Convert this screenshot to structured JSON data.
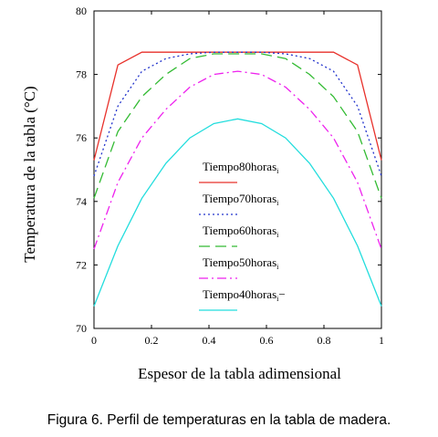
{
  "chart_data": {
    "type": "line",
    "xlabel": "Espesor de la tabla adimensional",
    "ylabel": "Temperatura de la tabla (°C)",
    "xlim": [
      0,
      1
    ],
    "ylim": [
      70,
      80
    ],
    "xticks": [
      "0",
      "0.2",
      "0.4",
      "0.6",
      "0.8",
      "1"
    ],
    "yticks": [
      "70",
      "72",
      "74",
      "76",
      "78",
      "80"
    ],
    "grid": false,
    "legend_position": "center",
    "x": [
      0,
      0.0833,
      0.1667,
      0.25,
      0.3333,
      0.4167,
      0.5,
      0.5833,
      0.6667,
      0.75,
      0.8333,
      0.9167,
      1
    ],
    "series": [
      {
        "name": "Tiempo80horas",
        "subscript": "i",
        "color": "#e8312b",
        "dash": "",
        "values": [
          75.3,
          78.3,
          78.7,
          78.7,
          78.7,
          78.7,
          78.7,
          78.7,
          78.7,
          78.7,
          78.7,
          78.3,
          75.3
        ]
      },
      {
        "name": "Tiempo70horas",
        "subscript": "i",
        "color": "#2233cc",
        "dash": "2,3",
        "values": [
          74.8,
          77.0,
          78.1,
          78.5,
          78.65,
          78.7,
          78.7,
          78.7,
          78.65,
          78.5,
          78.1,
          77.0,
          74.8
        ]
      },
      {
        "name": "Tiempo60horas",
        "subscript": "i",
        "color": "#33bb33",
        "dash": "12,6",
        "values": [
          74.1,
          76.2,
          77.3,
          78.0,
          78.5,
          78.65,
          78.65,
          78.65,
          78.5,
          78.0,
          77.3,
          76.2,
          74.1
        ]
      },
      {
        "name": "Tiempo50horas",
        "subscript": "i",
        "color": "#ee22ee",
        "dash": "10,4,2,4",
        "values": [
          72.5,
          74.6,
          76.0,
          76.9,
          77.6,
          78.0,
          78.1,
          78.0,
          77.6,
          76.9,
          76.0,
          74.6,
          72.5
        ]
      },
      {
        "name": "Tiempo40horas",
        "subscript": "i",
        "suffix": "−",
        "color": "#22dddd",
        "dash": "",
        "values": [
          70.7,
          72.6,
          74.1,
          75.2,
          76.0,
          76.45,
          76.6,
          76.45,
          76.0,
          75.2,
          74.1,
          72.6,
          70.7
        ]
      }
    ]
  },
  "caption": "Figura 6. Perfil de temperaturas en la tabla de madera."
}
